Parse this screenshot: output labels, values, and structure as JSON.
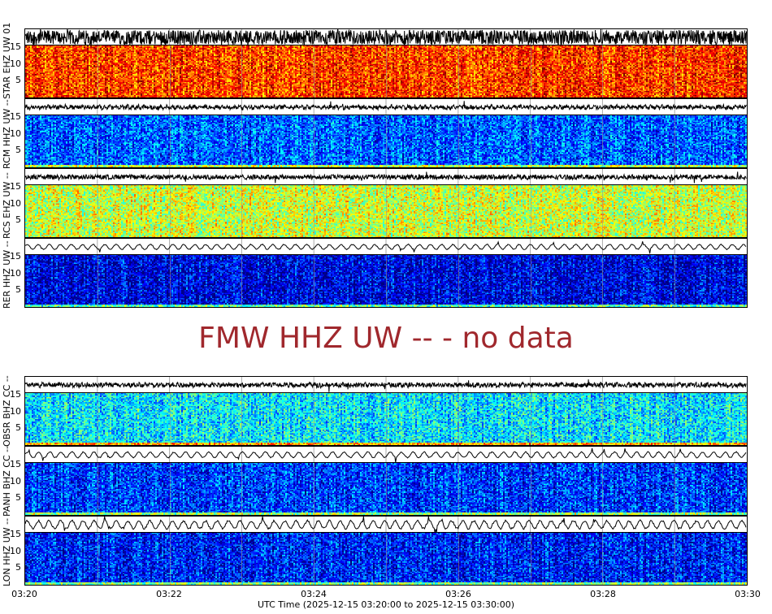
{
  "chart_data": {
    "type": "heatmap",
    "colormap": "jet",
    "xlabel": "UTC Time (2025-12-15 03:20:00 to 2025-12-15 03:30:00)",
    "xticks": [
      "03:20",
      "03:22",
      "03:24",
      "03:26",
      "03:28",
      "03:30"
    ],
    "xlim": [
      "03:20:00",
      "03:30:00"
    ],
    "ylim": [
      0,
      15.5
    ],
    "yticks": [
      "5",
      "10",
      "15"
    ],
    "grid": true,
    "panels": [
      {
        "label": "STAR EHZ UW 01",
        "group": "top",
        "level": 0.82,
        "wave_amp": 0.9,
        "wave_hf": 1.0
      },
      {
        "label": "RCM HHZ UW --",
        "group": "top",
        "level": 0.22,
        "wave_amp": 0.35,
        "wave_hf": 0.7
      },
      {
        "label": "RCS EHZ UW --",
        "group": "top",
        "level": 0.58,
        "wave_amp": 0.3,
        "wave_hf": 1.0
      },
      {
        "label": "RER HHZ UW --",
        "group": "top",
        "level": 0.1,
        "wave_amp": 0.35,
        "wave_hf": 0.15
      },
      {
        "label": "OBSR BHZ CC --",
        "group": "bottom",
        "level": 0.36,
        "wave_amp": 0.35,
        "wave_hf": 0.8
      },
      {
        "label": "PANH BHZ CC --",
        "group": "bottom",
        "level": 0.18,
        "wave_amp": 0.4,
        "wave_hf": 0.15
      },
      {
        "label": "LON HHZ UW --",
        "group": "bottom",
        "level": 0.15,
        "wave_amp": 0.6,
        "wave_hf": 0.2
      }
    ],
    "no_data_message": "FMW HHZ UW -- - no data"
  }
}
